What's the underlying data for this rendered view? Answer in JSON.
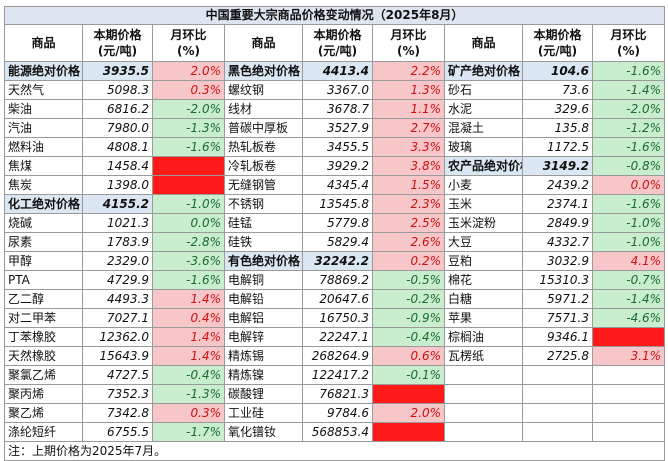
{
  "title": "中国重要大宗商品价格变动情况（2025年8月）",
  "headers": [
    {
      "name": "商品",
      "price": "本期价格\n(元/吨)",
      "pct": "月环比\n(%)"
    },
    {
      "name": "商品",
      "price": "本期价格\n(元/吨)",
      "pct": "月环比\n(%)"
    },
    {
      "name": "商品",
      "price": "本期价格\n(元/吨)",
      "pct": "月环比\n(%)"
    }
  ],
  "rows": [
    [
      {
        "n": "能源绝对价格",
        "p": "3935.5",
        "c": "2.0%",
        "s": "red",
        "g": true
      },
      {
        "n": "黑色绝对价格",
        "p": "4413.4",
        "c": "2.2%",
        "s": "red",
        "g": true
      },
      {
        "n": "矿产绝对价格",
        "p": "104.6",
        "c": "-1.6%",
        "s": "green",
        "g": true
      }
    ],
    [
      {
        "n": "天然气",
        "p": "5098.3",
        "c": "0.3%",
        "s": "red"
      },
      {
        "n": "螺纹钢",
        "p": "3367.0",
        "c": "1.3%",
        "s": "red"
      },
      {
        "n": "砂石",
        "p": "73.6",
        "c": "-1.4%",
        "s": "green"
      }
    ],
    [
      {
        "n": "柴油",
        "p": "6816.2",
        "c": "-2.0%",
        "s": "green"
      },
      {
        "n": "线材",
        "p": "3678.7",
        "c": "1.1%",
        "s": "red"
      },
      {
        "n": "水泥",
        "p": "329.6",
        "c": "-2.0%",
        "s": "green"
      }
    ],
    [
      {
        "n": "汽油",
        "p": "7980.0",
        "c": "-1.3%",
        "s": "green"
      },
      {
        "n": "普碳中厚板",
        "p": "3527.9",
        "c": "2.7%",
        "s": "red"
      },
      {
        "n": "混凝土",
        "p": "135.8",
        "c": "-1.2%",
        "s": "green"
      }
    ],
    [
      {
        "n": "燃料油",
        "p": "4808.1",
        "c": "-1.6%",
        "s": "green"
      },
      {
        "n": "热轧板卷",
        "p": "3455.5",
        "c": "3.3%",
        "s": "red"
      },
      {
        "n": "玻璃",
        "p": "1172.5",
        "c": "-1.6%",
        "s": "green"
      }
    ],
    [
      {
        "n": "焦煤",
        "p": "1458.4",
        "c": "10.4%",
        "s": "deep"
      },
      {
        "n": "冷轧板卷",
        "p": "3929.2",
        "c": "3.8%",
        "s": "red"
      },
      {
        "n": "农产品绝对价格",
        "p": "3149.2",
        "c": "-0.8%",
        "s": "green",
        "g": true
      }
    ],
    [
      {
        "n": "焦炭",
        "p": "1398.0",
        "c": "10.1%",
        "s": "deep"
      },
      {
        "n": "无缝钢管",
        "p": "4345.4",
        "c": "1.5%",
        "s": "red"
      },
      {
        "n": "小麦",
        "p": "2439.2",
        "c": "0.0%",
        "s": "red"
      }
    ],
    [
      {
        "n": "化工绝对价格",
        "p": "4155.2",
        "c": "-1.0%",
        "s": "green",
        "g": true
      },
      {
        "n": "不锈钢",
        "p": "13545.8",
        "c": "2.3%",
        "s": "red"
      },
      {
        "n": "玉米",
        "p": "2374.1",
        "c": "-1.6%",
        "s": "green"
      }
    ],
    [
      {
        "n": "烧碱",
        "p": "1021.3",
        "c": "0.0%",
        "s": "green"
      },
      {
        "n": "硅锰",
        "p": "5779.8",
        "c": "2.5%",
        "s": "red"
      },
      {
        "n": "玉米淀粉",
        "p": "2849.9",
        "c": "-1.0%",
        "s": "green"
      }
    ],
    [
      {
        "n": "尿素",
        "p": "1783.9",
        "c": "-2.8%",
        "s": "green"
      },
      {
        "n": "硅铁",
        "p": "5829.4",
        "c": "2.6%",
        "s": "red"
      },
      {
        "n": "大豆",
        "p": "4332.7",
        "c": "-1.0%",
        "s": "green"
      }
    ],
    [
      {
        "n": "甲醇",
        "p": "2329.0",
        "c": "-3.6%",
        "s": "green"
      },
      {
        "n": "有色绝对价格",
        "p": "32242.2",
        "c": "0.2%",
        "s": "red",
        "g": true
      },
      {
        "n": "豆粕",
        "p": "3032.9",
        "c": "4.1%",
        "s": "red"
      }
    ],
    [
      {
        "n": "PTA",
        "p": "4729.9",
        "c": "-1.6%",
        "s": "green"
      },
      {
        "n": "电解铜",
        "p": "78869.2",
        "c": "-0.5%",
        "s": "green"
      },
      {
        "n": "棉花",
        "p": "15310.3",
        "c": "-0.7%",
        "s": "green"
      }
    ],
    [
      {
        "n": "乙二醇",
        "p": "4493.3",
        "c": "1.4%",
        "s": "red"
      },
      {
        "n": "电解铅",
        "p": "20647.6",
        "c": "-0.2%",
        "s": "green"
      },
      {
        "n": "白糖",
        "p": "5971.2",
        "c": "-1.4%",
        "s": "green"
      }
    ],
    [
      {
        "n": "对二甲苯",
        "p": "7027.1",
        "c": "0.4%",
        "s": "red"
      },
      {
        "n": "电解铝",
        "p": "16750.3",
        "c": "-0.9%",
        "s": "green"
      },
      {
        "n": "苹果",
        "p": "7571.3",
        "c": "-4.6%",
        "s": "green"
      }
    ],
    [
      {
        "n": "丁苯橡胶",
        "p": "12362.0",
        "c": "1.4%",
        "s": "red"
      },
      {
        "n": "电解锌",
        "p": "22247.1",
        "c": "-0.4%",
        "s": "green"
      },
      {
        "n": "棕榈油",
        "p": "9346.1",
        "c": "5.4%",
        "s": "deep"
      }
    ],
    [
      {
        "n": "天然橡胶",
        "p": "15643.9",
        "c": "1.4%",
        "s": "red"
      },
      {
        "n": "精炼锡",
        "p": "268264.9",
        "c": "0.6%",
        "s": "red"
      },
      {
        "n": "瓦楞纸",
        "p": "2725.8",
        "c": "3.1%",
        "s": "red"
      }
    ],
    [
      {
        "n": "聚氯乙烯",
        "p": "4727.5",
        "c": "-0.4%",
        "s": "green"
      },
      {
        "n": "精炼镍",
        "p": "122417.2",
        "c": "-0.1%",
        "s": "green"
      },
      null
    ],
    [
      {
        "n": "聚丙烯",
        "p": "7352.3",
        "c": "-1.3%",
        "s": "green"
      },
      {
        "n": "碳酸锂",
        "p": "76821.3",
        "c": "16.2%",
        "s": "deep"
      },
      null
    ],
    [
      {
        "n": "聚乙烯",
        "p": "7342.8",
        "c": "0.3%",
        "s": "red"
      },
      {
        "n": "工业硅",
        "p": "9784.6",
        "c": "2.0%",
        "s": "red"
      },
      null
    ],
    [
      {
        "n": "涤纶短纤",
        "p": "6755.5",
        "c": "-1.7%",
        "s": "green"
      },
      {
        "n": "氧化镨钕",
        "p": "568853.4",
        "c": "19.4%",
        "s": "deep"
      },
      null
    ]
  ],
  "note": "注：上期价格为2025年7月。"
}
